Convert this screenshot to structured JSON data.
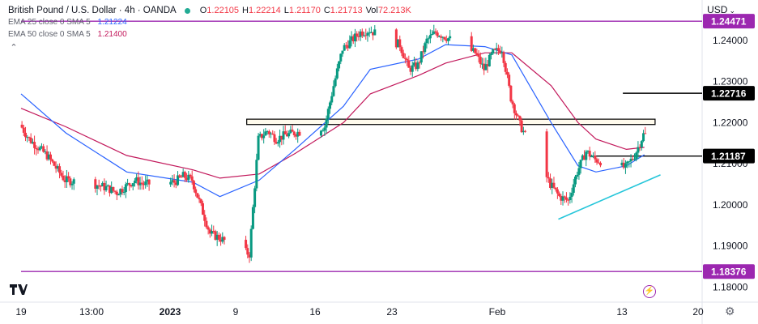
{
  "header": {
    "symbol_title": "British Pound / U.S. Dollar · 4h · OANDA",
    "ohlc": [
      {
        "key": "O",
        "value": "1.22105"
      },
      {
        "key": "H",
        "value": "1.22214"
      },
      {
        "key": "L",
        "value": "1.21170"
      },
      {
        "key": "C",
        "value": "1.21713"
      },
      {
        "key": "Vol",
        "value": "72.213K"
      }
    ],
    "indicators": [
      {
        "label": "EMA 25 close 0 SMA 5",
        "value": "1.21224",
        "color": "#2962ff"
      },
      {
        "label": "EMA 50 close 0 SMA 5",
        "value": "1.21400",
        "color": "#c2185b"
      }
    ],
    "currency": "USD"
  },
  "chart_data": {
    "type": "line",
    "chart_style": "candlestick",
    "y_axis": {
      "position": "right",
      "ticks": [
        "1.18000",
        "1.19000",
        "1.20000",
        "1.21000",
        "1.22000",
        "1.23000",
        "1.24000"
      ],
      "ylim": [
        1.1765,
        1.2475
      ]
    },
    "x_axis": {
      "ticks": [
        "19",
        "13:00",
        "2023",
        "9",
        "16",
        "23",
        "Feb",
        "13",
        "20"
      ]
    },
    "price_labels": [
      {
        "value": 1.24471,
        "text": "1.24471",
        "style": "purple"
      },
      {
        "value": 1.22716,
        "text": "1.22716",
        "style": "black"
      },
      {
        "value": 1.21187,
        "text": "1.21187",
        "style": "black"
      },
      {
        "value": 1.18376,
        "text": "1.18376",
        "style": "purple"
      }
    ],
    "horizontal_lines": [
      {
        "value": 1.24471,
        "color": "#9c27b0"
      },
      {
        "value": 1.18376,
        "color": "#9c27b0"
      },
      {
        "value": 1.22716,
        "color": "#000000",
        "from_x": "Feb 13",
        "short": true
      },
      {
        "value": 1.21187,
        "color": "#000000",
        "from_x": "Feb 10",
        "short": true
      }
    ],
    "resistance_zone": {
      "low": 1.21955,
      "high": 1.22085,
      "from_x": "Jan 9",
      "to_x": "Feb 16"
    },
    "trendline": {
      "from": {
        "x": "Feb 7",
        "y": 1.1965
      },
      "to": {
        "x": "Feb 16",
        "y": 1.2073
      },
      "color": "#26c6da"
    },
    "series": [
      {
        "name": "GBP/USD 4h",
        "x": [
          "Dec 19 00:00",
          "Dec 19 20:00",
          "Dec 20 16:00",
          "Dec 21 12:00",
          "Dec 22 08:00",
          "Dec 23 04:00",
          "Dec 26 00:00",
          "Dec 27 04:00",
          "Dec 28 00:00",
          "Dec 28 20:00",
          "Dec 29 16:00",
          "Dec 30 12:00",
          "Jan 2 08:00",
          "Jan 3 04:00",
          "Jan 4 00:00",
          "Jan 4 20:00",
          "Jan 5 16:00",
          "Jan 6 12:00",
          "Jan 9 08:00",
          "Jan 10 04:00",
          "Jan 11 00:00",
          "Jan 11 20:00",
          "Jan 12 16:00",
          "Jan 13 12:00",
          "Jan 16 08:00",
          "Jan 17 04:00",
          "Jan 18 00:00",
          "Jan 18 20:00",
          "Jan 19 16:00",
          "Jan 20 12:00",
          "Jan 23 08:00",
          "Jan 24 04:00",
          "Jan 25 00:00",
          "Jan 25 20:00",
          "Jan 26 16:00",
          "Jan 27 12:00",
          "Jan 30 08:00",
          "Jan 31 04:00",
          "Feb 1 00:00",
          "Feb 1 20:00",
          "Feb 2 16:00",
          "Feb 3 12:00",
          "Feb 6 08:00",
          "Feb 7 04:00",
          "Feb 8 00:00",
          "Feb 8 20:00",
          "Feb 9 16:00",
          "Feb 10 12:00",
          "Feb 13 08:00",
          "Feb 14 04:00",
          "Feb 15 00:00"
        ],
        "values": [
          1.2195,
          1.216,
          1.214,
          1.212,
          1.209,
          1.206,
          1.205,
          1.204,
          1.203,
          1.2045,
          1.206,
          1.205,
          1.2055,
          1.207,
          1.206,
          1.1995,
          1.193,
          1.192,
          1.188,
          1.216,
          1.218,
          1.216,
          1.217,
          1.2175,
          1.219,
          1.229,
          1.238,
          1.24,
          1.242,
          1.2425,
          1.239,
          1.233,
          1.234,
          1.24,
          1.242,
          1.241,
          1.237,
          1.233,
          1.237,
          1.238,
          1.226,
          1.2195,
          1.205,
          1.202,
          1.201,
          1.208,
          1.213,
          1.211,
          1.209,
          1.212,
          1.2171
        ]
      },
      {
        "name": "EMA 25",
        "color": "#2962ff",
        "x": [
          "Dec 19 00:00",
          "Dec 23 04:00",
          "Dec 28 20:00",
          "Jan 4 00:00",
          "Jan 6 12:00",
          "Jan 10 04:00",
          "Jan 13 12:00",
          "Jan 18 00:00",
          "Jan 20 12:00",
          "Jan 25 00:00",
          "Jan 27 12:00",
          "Jan 31 04:00",
          "Feb 2 16:00",
          "Feb 6 08:00",
          "Feb 8 20:00",
          "Feb 10 12:00",
          "Feb 13 08:00",
          "Feb 15 00:00"
        ],
        "values": [
          1.227,
          1.2175,
          1.208,
          1.2055,
          1.202,
          1.206,
          1.2135,
          1.224,
          1.233,
          1.2355,
          1.239,
          1.2385,
          1.2365,
          1.22,
          1.2095,
          1.208,
          1.2095,
          1.2122
        ]
      },
      {
        "name": "EMA 50",
        "color": "#c2185b",
        "x": [
          "Dec 19 00:00",
          "Dec 23 04:00",
          "Dec 28 20:00",
          "Jan 4 00:00",
          "Jan 6 12:00",
          "Jan 10 04:00",
          "Jan 13 12:00",
          "Jan 18 00:00",
          "Jan 20 12:00",
          "Jan 25 00:00",
          "Jan 27 12:00",
          "Jan 31 04:00",
          "Feb 2 16:00",
          "Feb 6 08:00",
          "Feb 8 20:00",
          "Feb 10 12:00",
          "Feb 13 08:00",
          "Feb 15 00:00"
        ],
        "values": [
          1.2235,
          1.219,
          1.212,
          1.2085,
          1.2065,
          1.2075,
          1.2125,
          1.22,
          1.227,
          1.2315,
          1.2345,
          1.237,
          1.237,
          1.229,
          1.22,
          1.216,
          1.2135,
          1.214
        ]
      }
    ],
    "grid": false,
    "legend": "top-left"
  }
}
